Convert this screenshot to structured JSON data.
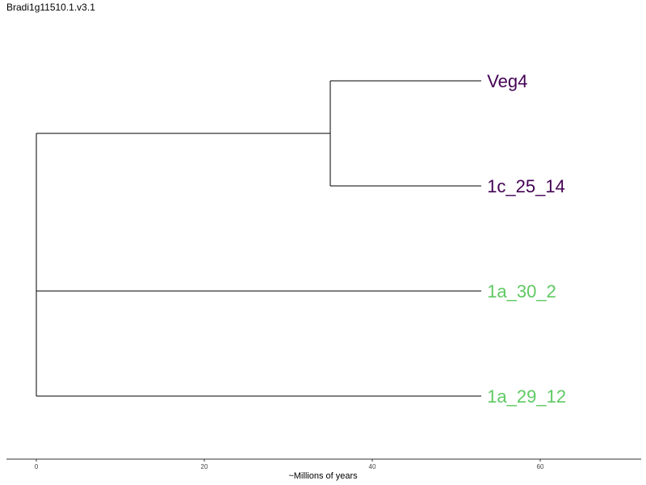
{
  "title": "Bradi1g11510.1.v3.1",
  "chart_data": {
    "type": "tree",
    "xlabel": "~Millions of years",
    "xlim": [
      0,
      72
    ],
    "ticks": [
      0,
      20,
      40,
      60
    ],
    "tips": [
      {
        "label": "Veg4",
        "color": "#440154"
      },
      {
        "label": "1c_25_14",
        "color": "#440154"
      },
      {
        "label": "1a_30_2",
        "color": "#5ec962"
      },
      {
        "label": "1a_29_12",
        "color": "#5ec962"
      }
    ],
    "root_x": 0,
    "tip_x": 53,
    "nodes": [
      {
        "name": "clade-veg4-1c",
        "x": 35,
        "children": [
          "Veg4",
          "1c_25_14"
        ]
      }
    ]
  }
}
